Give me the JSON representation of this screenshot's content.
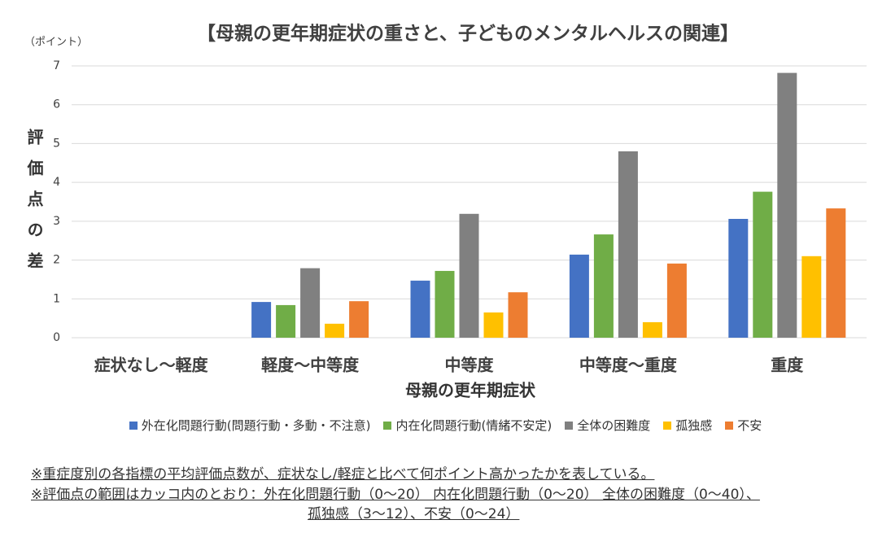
{
  "chart_data": {
    "type": "bar",
    "title": "【母親の更年期症状の重さと、子どものメンタルヘルスの関連】",
    "unit_label": "（ポイント）",
    "y_label": "評価点の差",
    "x_label": "母親の更年期症状",
    "categories": [
      "症状なし～軽度",
      "軽度～中等度",
      "中等度",
      "中等度～重度",
      "重度"
    ],
    "series": [
      {
        "name": "外在化問題行動(問題行動・多動・不注意)",
        "color": "#4472c4",
        "values": [
          0,
          0.92,
          1.47,
          2.14,
          3.06
        ]
      },
      {
        "name": "内在化問題行動(情緒不安定)",
        "color": "#70ad47",
        "values": [
          0,
          0.84,
          1.72,
          2.66,
          3.76
        ]
      },
      {
        "name": "全体の困難度",
        "color": "#808080",
        "values": [
          0,
          1.79,
          3.19,
          4.8,
          6.82
        ]
      },
      {
        "name": "孤独感",
        "color": "#ffc000",
        "values": [
          0,
          0.36,
          0.65,
          0.4,
          2.1
        ]
      },
      {
        "name": "不安",
        "color": "#ed7d31",
        "values": [
          0,
          0.94,
          1.17,
          1.91,
          3.33
        ]
      }
    ],
    "ylim": [
      0,
      7
    ],
    "yticks": [
      0,
      1,
      2,
      3,
      4,
      5,
      6,
      7
    ],
    "grid": true,
    "legend": "bottom",
    "notes": [
      "※重症度別の各指標の平均評価点数が、症状なし/軽症と比べて何ポイント高かったかを表している。",
      "※評価点の範囲はカッコ内のとおり：外在化問題行動（0～20） 内在化問題行動（0～20） 全体の困難度（0～40）、",
      "孤独感（3～12）、不安（0～24）"
    ]
  }
}
